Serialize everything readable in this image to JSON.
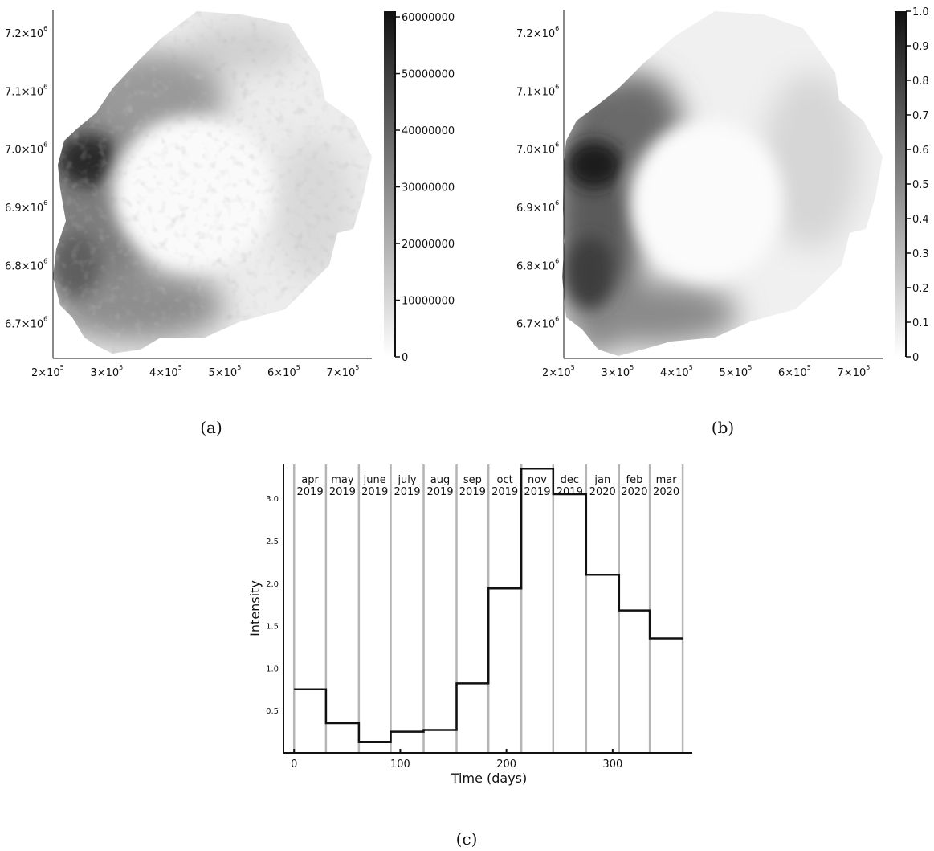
{
  "chart_data": [
    {
      "type": "heatmap",
      "caption": "(a)",
      "x_ticks": [
        {
          "base": "2×10",
          "exp": "5"
        },
        {
          "base": "3×10",
          "exp": "5"
        },
        {
          "base": "4×10",
          "exp": "5"
        },
        {
          "base": "5×10",
          "exp": "5"
        },
        {
          "base": "6×10",
          "exp": "5"
        },
        {
          "base": "7×10",
          "exp": "5"
        }
      ],
      "y_ticks": [
        {
          "base": "7.2×10",
          "exp": "6"
        },
        {
          "base": "7.1×10",
          "exp": "6"
        },
        {
          "base": "7.0×10",
          "exp": "6"
        },
        {
          "base": "6.9×10",
          "exp": "6"
        },
        {
          "base": "6.8×10",
          "exp": "6"
        },
        {
          "base": "6.7×10",
          "exp": "6"
        }
      ],
      "xlim": [
        190000,
        730000
      ],
      "ylim": [
        6640000,
        7240000
      ],
      "colorbar": {
        "ticks": [
          "60000000",
          "50000000",
          "40000000",
          "30000000",
          "20000000",
          "10000000",
          "0"
        ],
        "range": [
          0,
          61000000
        ],
        "colormap": "white-to-black"
      }
    },
    {
      "type": "heatmap",
      "caption": "(b)",
      "x_ticks": [
        {
          "base": "2×10",
          "exp": "5"
        },
        {
          "base": "3×10",
          "exp": "5"
        },
        {
          "base": "4×10",
          "exp": "5"
        },
        {
          "base": "5×10",
          "exp": "5"
        },
        {
          "base": "6×10",
          "exp": "5"
        },
        {
          "base": "7×10",
          "exp": "5"
        }
      ],
      "y_ticks": [
        {
          "base": "7.2×10",
          "exp": "6"
        },
        {
          "base": "7.1×10",
          "exp": "6"
        },
        {
          "base": "7.0×10",
          "exp": "6"
        },
        {
          "base": "6.9×10",
          "exp": "6"
        },
        {
          "base": "6.8×10",
          "exp": "6"
        },
        {
          "base": "6.7×10",
          "exp": "6"
        }
      ],
      "xlim": [
        190000,
        730000
      ],
      "ylim": [
        6640000,
        7240000
      ],
      "colorbar": {
        "ticks": [
          "1.0",
          "0.9",
          "0.8",
          "0.7",
          "0.6",
          "0.5",
          "0.4",
          "0.3",
          "0.2",
          "0.1",
          "0"
        ],
        "range": [
          0,
          1
        ],
        "colormap": "white-to-black"
      }
    },
    {
      "type": "line",
      "subtype": "step",
      "caption": "(c)",
      "xlabel": "Time (days)",
      "ylabel": "Intensity",
      "xlim": [
        -10,
        375
      ],
      "ylim": [
        0.0,
        3.4
      ],
      "x_ticks": [
        "0",
        "100",
        "200",
        "300"
      ],
      "y_ticks": [
        "3.0",
        "2.5",
        "2.0",
        "1.5",
        "1.0",
        "0.5"
      ],
      "grid": "month boundaries (vertical lines)",
      "boundaries": [
        0,
        30,
        61,
        91,
        122,
        153,
        183,
        214,
        244,
        275,
        306,
        335,
        366
      ],
      "months": [
        {
          "m": "apr",
          "y": "2019"
        },
        {
          "m": "may",
          "y": "2019"
        },
        {
          "m": "june",
          "y": "2019"
        },
        {
          "m": "july",
          "y": "2019"
        },
        {
          "m": "aug",
          "y": "2019"
        },
        {
          "m": "sep",
          "y": "2019"
        },
        {
          "m": "oct",
          "y": "2019"
        },
        {
          "m": "nov",
          "y": "2019"
        },
        {
          "m": "dec",
          "y": "2019"
        },
        {
          "m": "jan",
          "y": "2020"
        },
        {
          "m": "feb",
          "y": "2020"
        },
        {
          "m": "mar",
          "y": "2020"
        }
      ],
      "values": [
        0.75,
        0.35,
        0.13,
        0.25,
        0.27,
        0.82,
        1.94,
        3.35,
        3.05,
        2.1,
        1.68,
        1.35
      ]
    }
  ]
}
